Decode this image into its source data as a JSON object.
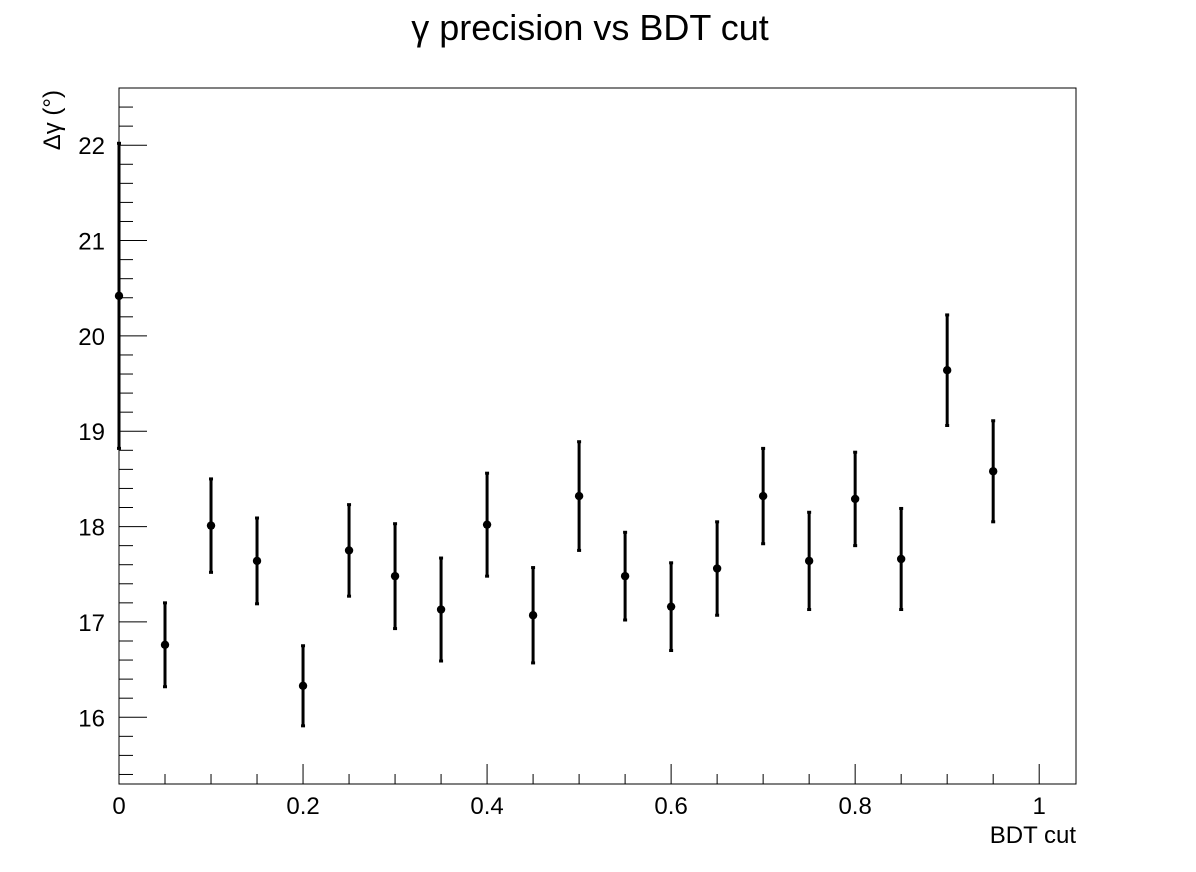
{
  "chart_data": {
    "type": "scatter",
    "title": "γ precision vs BDT cut",
    "xlabel": "BDT cut",
    "ylabel": "Δγ (°)",
    "xlim": [
      0,
      1.04
    ],
    "ylim": [
      15.3,
      22.6
    ],
    "x_ticks": [
      "0",
      "0.2",
      "0.4",
      "0.6",
      "0.8",
      "1"
    ],
    "y_ticks": [
      "16",
      "17",
      "18",
      "19",
      "20",
      "21",
      "22"
    ],
    "grid": false,
    "legend": "none",
    "marker_color": "#000000",
    "series": [
      {
        "x": [
          0.0,
          0.05,
          0.1,
          0.15,
          0.2,
          0.25,
          0.3,
          0.35,
          0.4,
          0.45,
          0.5,
          0.55,
          0.6,
          0.65,
          0.7,
          0.75,
          0.8,
          0.85,
          0.9,
          0.95
        ],
        "values": [
          20.42,
          16.76,
          18.01,
          17.64,
          16.33,
          17.75,
          17.48,
          17.13,
          18.02,
          17.07,
          18.32,
          17.48,
          17.16,
          17.56,
          18.32,
          17.64,
          18.29,
          17.66,
          19.64,
          18.58
        ],
        "errors": [
          1.6,
          0.44,
          0.49,
          0.45,
          0.42,
          0.48,
          0.55,
          0.54,
          0.54,
          0.5,
          0.57,
          0.46,
          0.46,
          0.49,
          0.5,
          0.51,
          0.49,
          0.53,
          0.58,
          0.53
        ]
      }
    ]
  }
}
